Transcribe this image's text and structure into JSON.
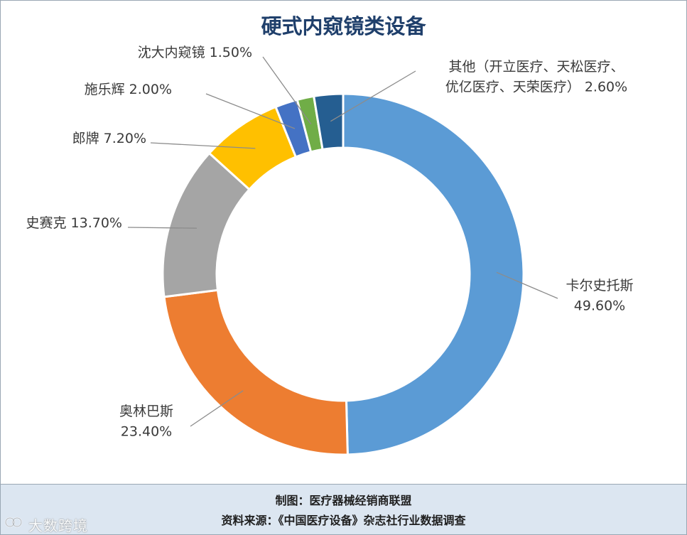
{
  "title": "硬式内窥镜类设备",
  "chart_data": {
    "type": "pie",
    "title": "硬式内窥镜类设备",
    "start_angle_deg": 0,
    "direction": "clockwise",
    "slices": [
      {
        "name": "卡尔史托斯",
        "value": 49.6,
        "label_lines": [
          "卡尔史托斯",
          "49.60%"
        ],
        "color": "#5b9bd5"
      },
      {
        "name": "奥林巴斯",
        "value": 23.4,
        "label_lines": [
          "奥林巴斯",
          "23.40%"
        ],
        "color": "#ed7d31"
      },
      {
        "name": "史赛克",
        "value": 13.7,
        "label_lines": [
          "史赛克 13.70%"
        ],
        "color": "#a5a5a5"
      },
      {
        "name": "郎牌",
        "value": 7.2,
        "label_lines": [
          "郎牌 7.20%"
        ],
        "color": "#ffc000"
      },
      {
        "name": "施乐辉",
        "value": 2.0,
        "label_lines": [
          "施乐辉 2.00%"
        ],
        "color": "#4472c4"
      },
      {
        "name": "沈大内窥镜",
        "value": 1.5,
        "label_lines": [
          "沈大内窥镜 1.50%"
        ],
        "color": "#70ad47"
      },
      {
        "name": "其他（开立医疗、天松医疗、优亿医疗、天荣医疗）",
        "value": 2.6,
        "label_lines": [
          "其他（开立医疗、天松医疗、",
          "优亿医疗、天荣医疗） 2.60%"
        ],
        "color": "#255e91"
      }
    ]
  },
  "footer": {
    "line1": "制图：医疗器械经销商联盟",
    "line2": "资料来源：《中国医疗设备》杂志社行业数据调查"
  },
  "watermark": "大数跨境"
}
